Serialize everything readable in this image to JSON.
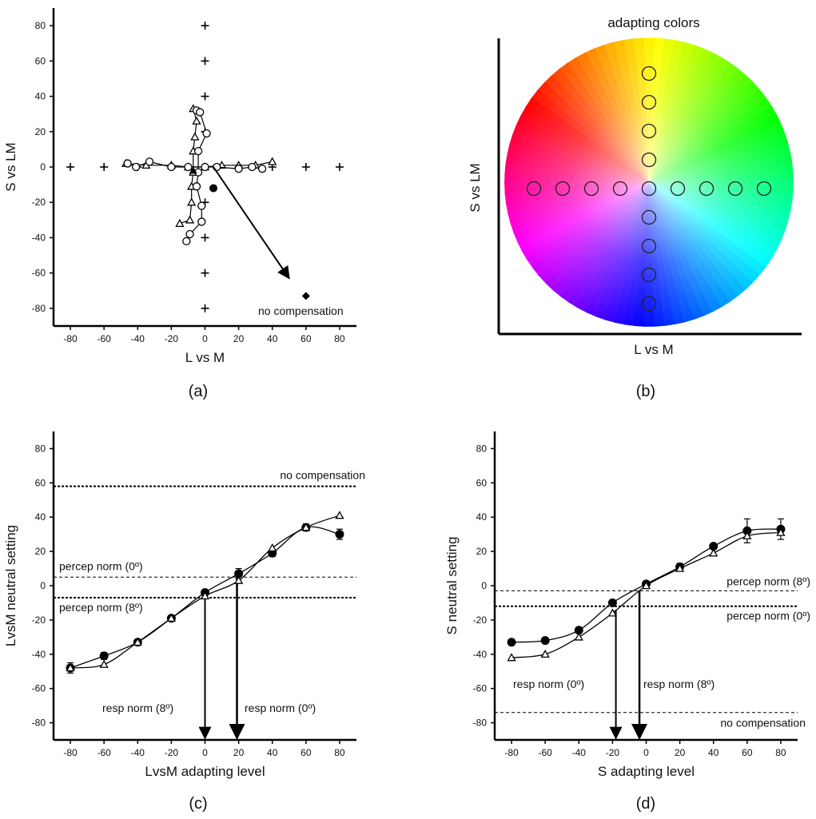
{
  "chart_data": [
    {
      "panel_label": "(a)",
      "type": "scatter",
      "xlabel": "L vs M",
      "ylabel": "S vs LM",
      "xlim": [
        -90,
        90
      ],
      "ylim": [
        -90,
        90
      ],
      "xticks": [
        -80,
        -60,
        -40,
        -20,
        0,
        20,
        40,
        60,
        80
      ],
      "yticks": [
        -80,
        -60,
        -40,
        -20,
        0,
        20,
        40,
        60,
        80
      ],
      "adapting_points": [
        [
          -80,
          0
        ],
        [
          -60,
          0
        ],
        [
          -40,
          0
        ],
        [
          -20,
          0
        ],
        [
          20,
          0
        ],
        [
          40,
          0
        ],
        [
          60,
          0
        ],
        [
          80,
          0
        ],
        [
          0,
          -80
        ],
        [
          0,
          -60
        ],
        [
          0,
          -40
        ],
        [
          0,
          -20
        ],
        [
          0,
          20
        ],
        [
          0,
          40
        ],
        [
          0,
          60
        ],
        [
          0,
          80
        ]
      ],
      "series": [
        {
          "marker": "triangle",
          "points": [
            [
              -47,
              2
            ],
            [
              -35,
              1
            ],
            [
              -20,
              1
            ],
            [
              -10,
              0
            ],
            [
              0,
              0
            ],
            [
              10,
              1
            ],
            [
              20,
              1
            ],
            [
              30,
              1
            ],
            [
              40,
              3
            ]
          ]
        },
        {
          "marker": "circle",
          "points": [
            [
              -46,
              2
            ],
            [
              -41,
              0
            ],
            [
              -33,
              3
            ],
            [
              -20,
              0
            ],
            [
              -10,
              0
            ],
            [
              0,
              0
            ],
            [
              7,
              0
            ],
            [
              20,
              -1
            ],
            [
              28,
              0
            ],
            [
              34,
              -1
            ]
          ]
        },
        {
          "marker": "triangle",
          "points": [
            [
              -7,
              33
            ],
            [
              -5,
              26
            ],
            [
              -6,
              17
            ],
            [
              -7,
              9
            ],
            [
              -7,
              -3
            ],
            [
              -8,
              -11
            ],
            [
              -8,
              -20
            ],
            [
              -9,
              -30
            ],
            [
              -15,
              -32
            ]
          ]
        },
        {
          "marker": "circle",
          "points": [
            [
              -5,
              32
            ],
            [
              -3,
              31
            ],
            [
              1,
              19
            ],
            [
              -4,
              9
            ],
            [
              -4,
              -3
            ],
            [
              -5,
              -11
            ],
            [
              -2,
              -22
            ],
            [
              -2,
              -31
            ],
            [
              -9,
              -38
            ],
            [
              -11,
              -42
            ]
          ]
        }
      ],
      "filled_points": [
        {
          "marker": "triangle",
          "x": -7,
          "y": -2
        },
        {
          "marker": "circle",
          "x": 5,
          "y": -12
        },
        {
          "marker": "diamond",
          "x": 60,
          "y": -73
        }
      ],
      "arrow": {
        "from": [
          5,
          0
        ],
        "to": [
          50,
          -63
        ]
      },
      "annotation": "no compensation"
    },
    {
      "panel_label": "(b)",
      "type": "scatter",
      "title": "adapting colors",
      "xlabel": "L vs M",
      "ylabel": "S vs LM",
      "horizontal_circles": 9,
      "vertical_circles": 9
    },
    {
      "panel_label": "(c)",
      "type": "line",
      "xlabel": "LvsM adapting level",
      "ylabel": "LvsM neutral setting",
      "xlim": [
        -90,
        90
      ],
      "ylim": [
        -90,
        90
      ],
      "xticks": [
        -80,
        -60,
        -40,
        -20,
        0,
        20,
        40,
        60,
        80
      ],
      "yticks": [
        -80,
        -60,
        -40,
        -20,
        0,
        20,
        40,
        60,
        80
      ],
      "x": [
        -80,
        -60,
        -40,
        -20,
        0,
        20,
        40,
        60,
        80
      ],
      "series": [
        {
          "marker": "filled-circle",
          "values": [
            -48,
            -41,
            -33,
            -19,
            -4,
            7,
            19,
            34,
            30
          ]
        },
        {
          "marker": "open-triangle",
          "values": [
            -48,
            -46,
            -33,
            -19,
            -6,
            3,
            22,
            34,
            41
          ]
        }
      ],
      "error_bars": [
        3,
        2,
        1,
        1,
        1,
        3,
        2,
        2,
        3
      ],
      "reference_lines": [
        {
          "label": "no compensation",
          "y": 58,
          "style": "heavy"
        },
        {
          "label": "percep norm (0º)",
          "y": 5,
          "style": "light"
        },
        {
          "label": "percep norm (8º)",
          "y": -7,
          "style": "heavy"
        }
      ],
      "arrows": [
        {
          "label": "resp norm (8º)",
          "x": 0
        },
        {
          "label": "resp norm (0º)",
          "x": 19
        }
      ]
    },
    {
      "panel_label": "(d)",
      "type": "line",
      "xlabel": "S adapting level",
      "ylabel": "S neutral setting",
      "xlim": [
        -90,
        90
      ],
      "ylim": [
        -90,
        90
      ],
      "xticks": [
        -80,
        -60,
        -40,
        -20,
        0,
        20,
        40,
        60,
        80
      ],
      "yticks": [
        -80,
        -60,
        -40,
        -20,
        0,
        20,
        40,
        60,
        80
      ],
      "x": [
        -80,
        -60,
        -40,
        -20,
        0,
        20,
        40,
        60,
        80
      ],
      "series": [
        {
          "marker": "filled-circle",
          "values": [
            -33,
            -32,
            -26,
            -10,
            1,
            11,
            23,
            32,
            33
          ]
        },
        {
          "marker": "open-triangle",
          "values": [
            -42,
            -40,
            -30,
            -16,
            0,
            10,
            19,
            29,
            31
          ]
        }
      ],
      "error_bars": [
        1,
        1,
        1,
        1,
        1,
        2,
        1,
        7,
        6
      ],
      "reference_lines": [
        {
          "label": "percep norm (8º)",
          "y": -3,
          "style": "light"
        },
        {
          "label": "percep norm (0º)",
          "y": -12,
          "style": "heavy"
        },
        {
          "label": "no compensation",
          "y": -74,
          "style": "light"
        }
      ],
      "arrows": [
        {
          "label": "resp norm (0º)",
          "x": -18
        },
        {
          "label": "resp norm (8º)",
          "x": -4
        }
      ]
    }
  ]
}
